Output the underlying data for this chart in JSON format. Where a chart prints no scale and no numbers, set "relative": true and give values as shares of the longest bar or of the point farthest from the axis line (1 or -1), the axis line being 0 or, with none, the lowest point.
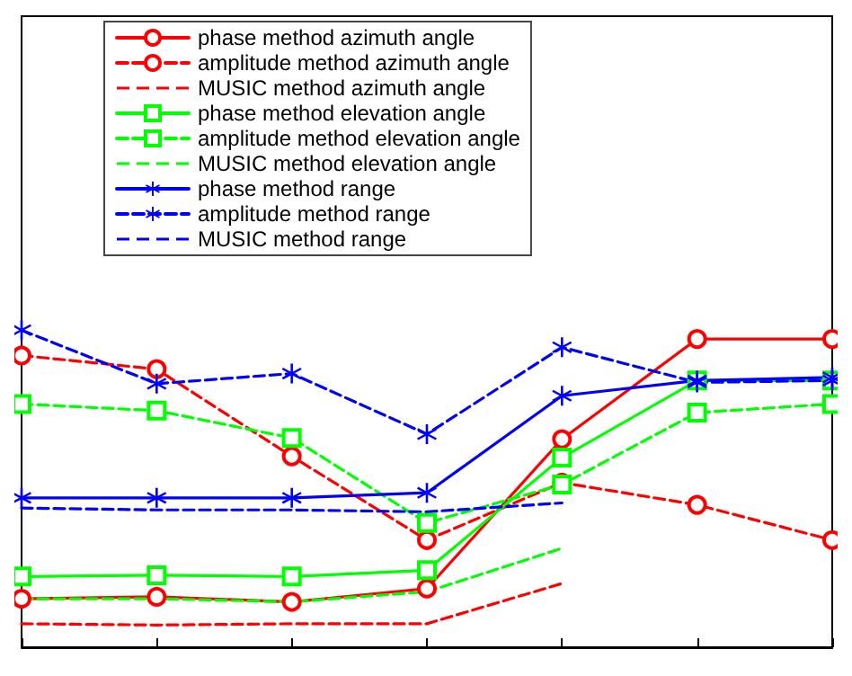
{
  "chart_data": {
    "type": "line",
    "relative": true,
    "legend": "top",
    "grid": false,
    "categories": [
      null,
      null,
      null,
      null,
      null,
      null,
      null
    ],
    "series": [
      {
        "name": "phase method azimuth angle",
        "color": "#ff0000",
        "line_style": "solid",
        "marker": "circle",
        "values": [
          0.153,
          0.159,
          0.143,
          0.185,
          0.656,
          0.972,
          0.972
        ]
      },
      {
        "name": "amplitude method azimuth angle",
        "color": "#ff0000",
        "line_style": "dashed",
        "marker": "circle",
        "values": [
          0.92,
          0.877,
          0.602,
          0.338,
          0.519,
          0.449,
          0.338
        ]
      },
      {
        "name": "MUSIC method azimuth angle",
        "color": "#ff0000",
        "line_style": "dashed",
        "marker": "none",
        "values": [
          0.074,
          0.07,
          0.074,
          0.074,
          0.201,
          null,
          null
        ]
      },
      {
        "name": "phase method elevation angle",
        "color": "#00ff00",
        "line_style": "solid",
        "marker": "square",
        "values": [
          0.223,
          0.227,
          0.223,
          0.243,
          0.598,
          0.841,
          0.841
        ]
      },
      {
        "name": "amplitude method elevation angle",
        "color": "#00ff00",
        "line_style": "dashed",
        "marker": "square",
        "values": [
          0.767,
          0.746,
          0.66,
          0.392,
          0.513,
          0.74,
          0.767
        ]
      },
      {
        "name": "MUSIC method elevation angle",
        "color": "#00ff00",
        "line_style": "dashed",
        "marker": "none",
        "values": [
          0.153,
          0.153,
          0.143,
          0.175,
          0.312,
          null,
          null
        ]
      },
      {
        "name": "phase method range",
        "color": "#0000ff",
        "line_style": "solid",
        "marker": "star",
        "values": [
          0.471,
          0.471,
          0.471,
          0.487,
          0.793,
          0.841,
          0.851
        ]
      },
      {
        "name": "amplitude method range",
        "color": "#0000ff",
        "line_style": "dashed",
        "marker": "star",
        "values": [
          1,
          0.831,
          0.863,
          0.672,
          0.946,
          0.835,
          0.841
        ]
      },
      {
        "name": "MUSIC method range",
        "color": "#0000ff",
        "line_style": "dashed",
        "marker": "none",
        "values": [
          0.439,
          0.433,
          0.433,
          0.427,
          0.455,
          null,
          null
        ]
      }
    ]
  }
}
